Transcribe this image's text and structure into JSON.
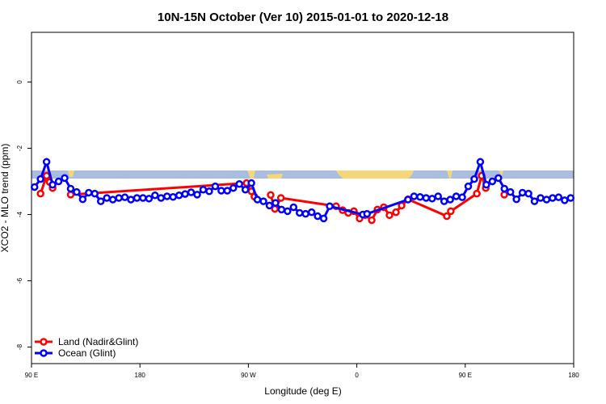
{
  "chart_data": {
    "type": "line",
    "title": "10N-15N October (Ver 10)   2015-01-01 to 2020-12-18",
    "xlabel": "Longitude (deg E)",
    "ylabel": "XCO2 - MLO trend (ppm)",
    "xlim": [
      90,
      540
    ],
    "xticks": [
      {
        "value": 90,
        "label": "90 E"
      },
      {
        "value": 180,
        "label": "180"
      },
      {
        "value": 270,
        "label": "90 W"
      },
      {
        "value": 360,
        "label": "0"
      },
      {
        "value": 450,
        "label": "90 E"
      },
      {
        "value": 540,
        "label": "180"
      }
    ],
    "ylim": [
      -8.5,
      1.5
    ],
    "yticks": [
      0,
      -2,
      -4,
      -6,
      -8
    ],
    "legend": "bottom-left",
    "series": [
      {
        "name": "Land (Nadir&Glint)",
        "color": "#ff0000",
        "x": [
          97.5,
          102.5,
          105,
          107.5,
          110,
          122.5,
          268.5,
          272.5,
          275,
          279,
          288.5,
          292,
          297,
          342.8,
          348.2,
          352.9,
          357.6,
          362.3,
          367,
          372.4,
          377.1,
          382.4,
          387.1,
          392.5,
          397.2,
          402.5,
          434.7,
          438,
          459.6,
          463.6,
          467,
          472,
          482.4
        ],
        "values": [
          -3.37,
          -2.83,
          -3.02,
          -3.2,
          null,
          -3.4,
          -3.05,
          -3.3,
          -3.46,
          null,
          -3.41,
          -3.83,
          -3.5,
          -3.75,
          -3.87,
          -3.95,
          -3.9,
          -4.12,
          -4.02,
          -4.17,
          -3.85,
          -3.78,
          -4.02,
          -3.93,
          -3.73,
          -3.54,
          -4.05,
          -3.9,
          -3.37,
          -2.83,
          -3.2,
          null,
          -3.4
        ]
      },
      {
        "name": "Ocean (Glint)",
        "color": "#0000ff",
        "x": [
          92.5,
          97.5,
          102.5,
          107.5,
          112.5,
          117.5,
          122.5,
          127.5,
          132.5,
          137.5,
          142.5,
          147.5,
          152.5,
          157.5,
          162.5,
          167.5,
          172.5,
          177.5,
          182.5,
          187.5,
          192.5,
          197.5,
          202.5,
          207.5,
          212.5,
          217.5,
          222.5,
          227.5,
          232.5,
          237.5,
          242.5,
          247.5,
          252.5,
          257.5,
          262.5,
          267.5,
          272.5,
          277.5,
          282.5,
          287.5,
          292.5,
          297.5,
          302.5,
          307.5,
          312.5,
          317.5,
          322.5,
          327.5,
          332.5,
          337.5,
          365,
          368.5,
          402.5,
          407.5,
          412.5,
          417.5,
          422.5,
          427.5,
          432.5,
          437.5,
          442.5,
          447.5,
          452.5,
          457.5,
          462.5,
          467.5,
          472.5,
          477.5,
          482.5,
          487.5,
          492.5,
          497.5,
          502.5,
          507.5,
          512.5,
          517.5,
          522.5,
          527.5,
          532.5,
          537.5
        ],
        "values": [
          -3.17,
          -2.93,
          -2.41,
          -3.1,
          -3.0,
          -2.9,
          -3.22,
          -3.32,
          -3.54,
          -3.34,
          -3.37,
          -3.6,
          -3.5,
          -3.55,
          -3.5,
          -3.48,
          -3.55,
          -3.5,
          -3.5,
          -3.52,
          -3.42,
          -3.5,
          -3.45,
          -3.47,
          -3.42,
          -3.38,
          -3.33,
          -3.4,
          -3.25,
          -3.3,
          -3.15,
          -3.28,
          -3.28,
          -3.2,
          -3.08,
          -3.25,
          -3.05,
          -3.55,
          -3.6,
          -3.73,
          -3.65,
          -3.85,
          -3.9,
          -3.78,
          -3.95,
          -3.98,
          -3.93,
          -4.05,
          -4.12,
          -3.75,
          -4.0,
          -3.98,
          -3.55,
          -3.45,
          -3.47,
          -3.5,
          -3.52,
          -3.45,
          -3.6,
          -3.55,
          -3.45,
          -3.48,
          -3.15,
          -2.93,
          -2.41,
          -3.1,
          -3.0,
          -2.9,
          -3.22,
          -3.32,
          -3.54,
          -3.34,
          -3.37,
          -3.6,
          -3.5,
          -3.55,
          -3.5,
          -3.48,
          -3.57,
          -3.5
        ]
      }
    ]
  }
}
